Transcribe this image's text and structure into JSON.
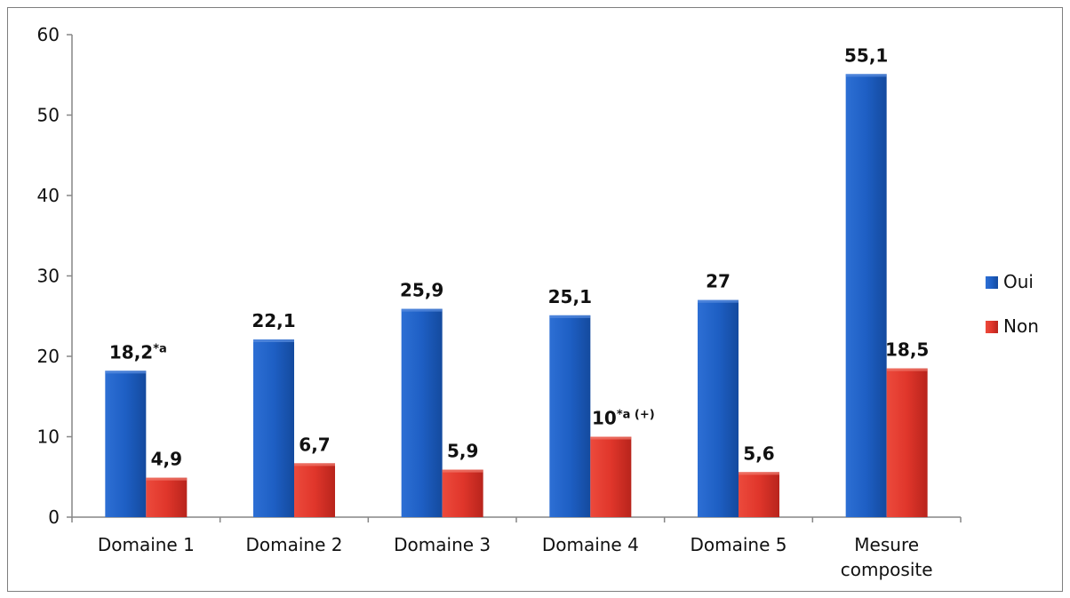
{
  "chart_data": {
    "type": "bar",
    "title": "",
    "xlabel": "",
    "ylabel": "",
    "ylim": [
      0,
      60
    ],
    "yticks": [
      0,
      10,
      20,
      30,
      40,
      50,
      60
    ],
    "grid": false,
    "legend_position": "right",
    "categories": [
      [
        "Domaine 1"
      ],
      [
        "Domaine 2"
      ],
      [
        "Domaine 3"
      ],
      [
        "Domaine 4"
      ],
      [
        "Domaine 5"
      ],
      [
        "Mesure",
        "composite"
      ]
    ],
    "series": [
      {
        "name": "Oui",
        "color": "#1f5fbf",
        "values": [
          18.2,
          22.1,
          25.9,
          25.1,
          27,
          55.1
        ],
        "labels": [
          "18,2",
          "22,1",
          "25,9",
          "25,1",
          "27",
          "55,1"
        ],
        "label_superscripts": [
          "*a",
          "",
          "",
          "",
          "",
          ""
        ]
      },
      {
        "name": "Non",
        "color": "#d9322a",
        "values": [
          4.9,
          6.7,
          5.9,
          10,
          5.6,
          18.5
        ],
        "labels": [
          "4,9",
          "6,7",
          "5,9",
          "10",
          "5,6",
          "18,5"
        ],
        "label_superscripts": [
          "",
          "",
          "",
          "*a (+)",
          "",
          ""
        ]
      }
    ]
  }
}
